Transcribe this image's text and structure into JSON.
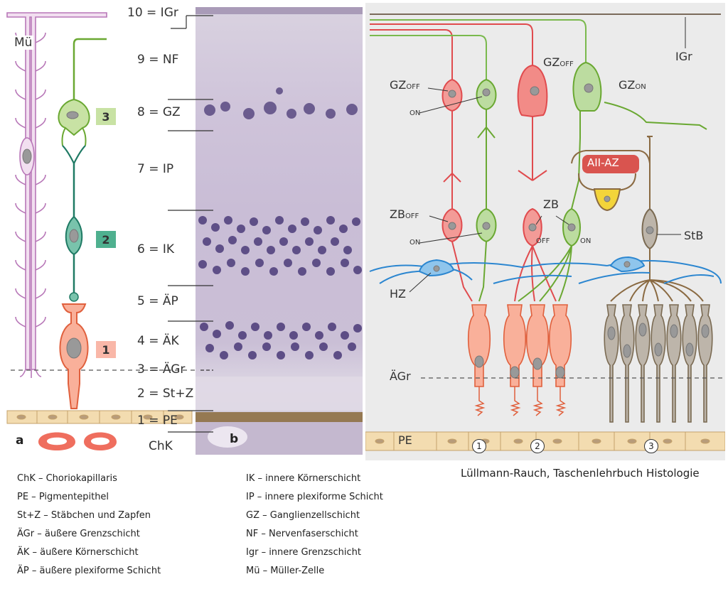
{
  "panel_a": {
    "letter": "a",
    "mueller_label": "Mü",
    "numbers": [
      "3",
      "2",
      "1"
    ],
    "colors": {
      "mueller": "#c887c8",
      "ganglion": "#7fb34a",
      "bipolar": "#1f7a64",
      "receptor": "#f08060",
      "pe": "#f3dcb0"
    }
  },
  "panel_b": {
    "letter": "b",
    "layers": [
      "10 = IGr",
      "9 = NF",
      "8 = GZ",
      "7 = IP",
      "6 = IK",
      "5 = ÄP",
      "4 = ÄK",
      "3 = ÄGr",
      "2 = St+Z",
      "1 = PE",
      "ChK"
    ]
  },
  "panel_c": {
    "labels": {
      "igr": "IGr",
      "gz_off_left": "GZ",
      "gz_off_left_sub": "OFF",
      "on_upper": "ON",
      "gz_off_center": "GZ",
      "gz_off_center_sub": "OFF",
      "gz_on": "GZ",
      "gz_on_sub": "ON",
      "aii_az": "AII-AZ",
      "zb_off": "ZB",
      "zb_off_sub": "OFF",
      "on_lower": "ON",
      "zb": "ZB",
      "off": "OFF",
      "on_right": "ON",
      "stb": "StB",
      "hz": "HZ",
      "aegr": "ÄGr",
      "pe": "PE",
      "circle_1": "1",
      "circle_2": "2",
      "circle_3": "3"
    },
    "colors": {
      "red": "#e8585a",
      "green": "#7ab94d",
      "blue": "#2b86d0",
      "brown": "#8a6a42",
      "gray": "#a8a095",
      "orange": "#f4846a",
      "aii": "#d9544f",
      "yellow": "#f3d43a"
    }
  },
  "legend_left": [
    "ChK – Choriokapillaris",
    "PE – Pigmentepithel",
    "St+Z – Stäbchen und Zapfen",
    "ÄGr – äußere Grenzschicht",
    "ÄK – äußere Körnerschicht",
    "ÄP – äußere plexiforme Schicht"
  ],
  "legend_right": [
    "IK – innere Körnerschicht",
    "IP – innere plexiforme Schicht",
    "GZ – Ganglienzellschicht",
    "NF – Nervenfaserschicht",
    "Igr – innere Grenzschicht",
    "Mü – Müller-Zelle"
  ],
  "credit": "Lüllmann-Rauch, Taschenlehrbuch Histologie"
}
